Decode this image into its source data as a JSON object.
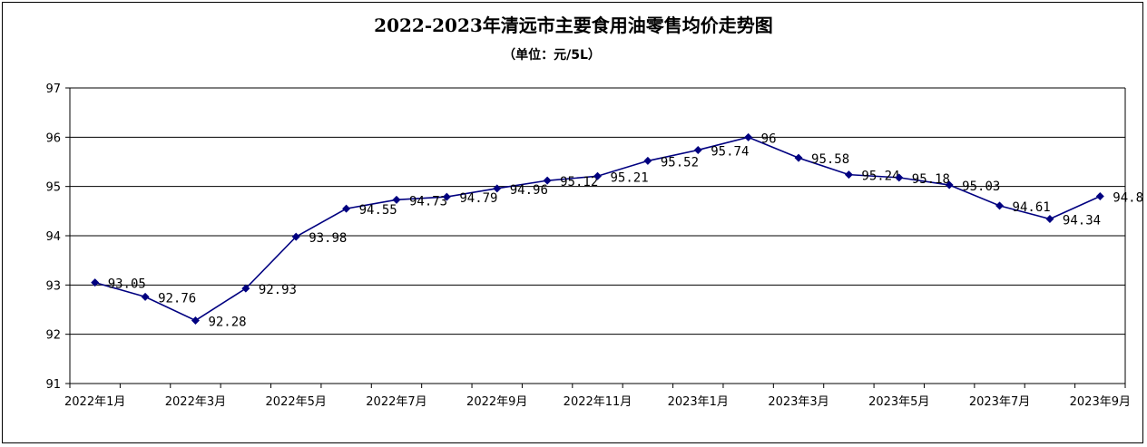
{
  "chart_data": {
    "type": "line",
    "title": "2022-2023年清远市主要食用油零售均价走势图",
    "subtitle": "（单位：元/5L）",
    "xlabel": "",
    "ylabel": "",
    "ylim": [
      91,
      97
    ],
    "yticks": [
      91,
      92,
      93,
      94,
      95,
      96,
      97
    ],
    "grid": true,
    "x": [
      "2022年1月",
      "2022年2月",
      "2022年3月",
      "2022年4月",
      "2022年5月",
      "2022年6月",
      "2022年7月",
      "2022年8月",
      "2022年9月",
      "2022年10月",
      "2022年11月",
      "2022年12月",
      "2023年1月",
      "2023年2月",
      "2023年3月",
      "2023年4月",
      "2023年5月",
      "2023年6月",
      "2023年7月",
      "2023年8月",
      "2023年9月"
    ],
    "x_tick_labels": [
      "2022年1月",
      "",
      "2022年3月",
      "",
      "2022年5月",
      "",
      "2022年7月",
      "",
      "2022年9月",
      "",
      "2022年11月",
      "",
      "2023年1月",
      "",
      "2023年3月",
      "",
      "2023年5月",
      "",
      "2023年7月",
      "",
      "2023年9月"
    ],
    "series": [
      {
        "values": [
          93.05,
          92.76,
          92.28,
          92.93,
          93.98,
          94.55,
          94.73,
          94.79,
          94.96,
          95.12,
          95.21,
          95.52,
          95.74,
          96,
          95.58,
          95.24,
          95.18,
          95.03,
          94.61,
          94.34,
          94.8
        ],
        "labels": [
          "93.05",
          "92.76",
          "92.28",
          "92.93",
          "93.98",
          "94.55",
          "94.73",
          "94.79",
          "94.96",
          "95.12",
          "95.21",
          "95.52",
          "95.74",
          "96",
          "95.58",
          "95.24",
          "95.18",
          "95.03",
          "94.61",
          "94.34",
          "94.8"
        ],
        "color": "#000080"
      }
    ]
  }
}
